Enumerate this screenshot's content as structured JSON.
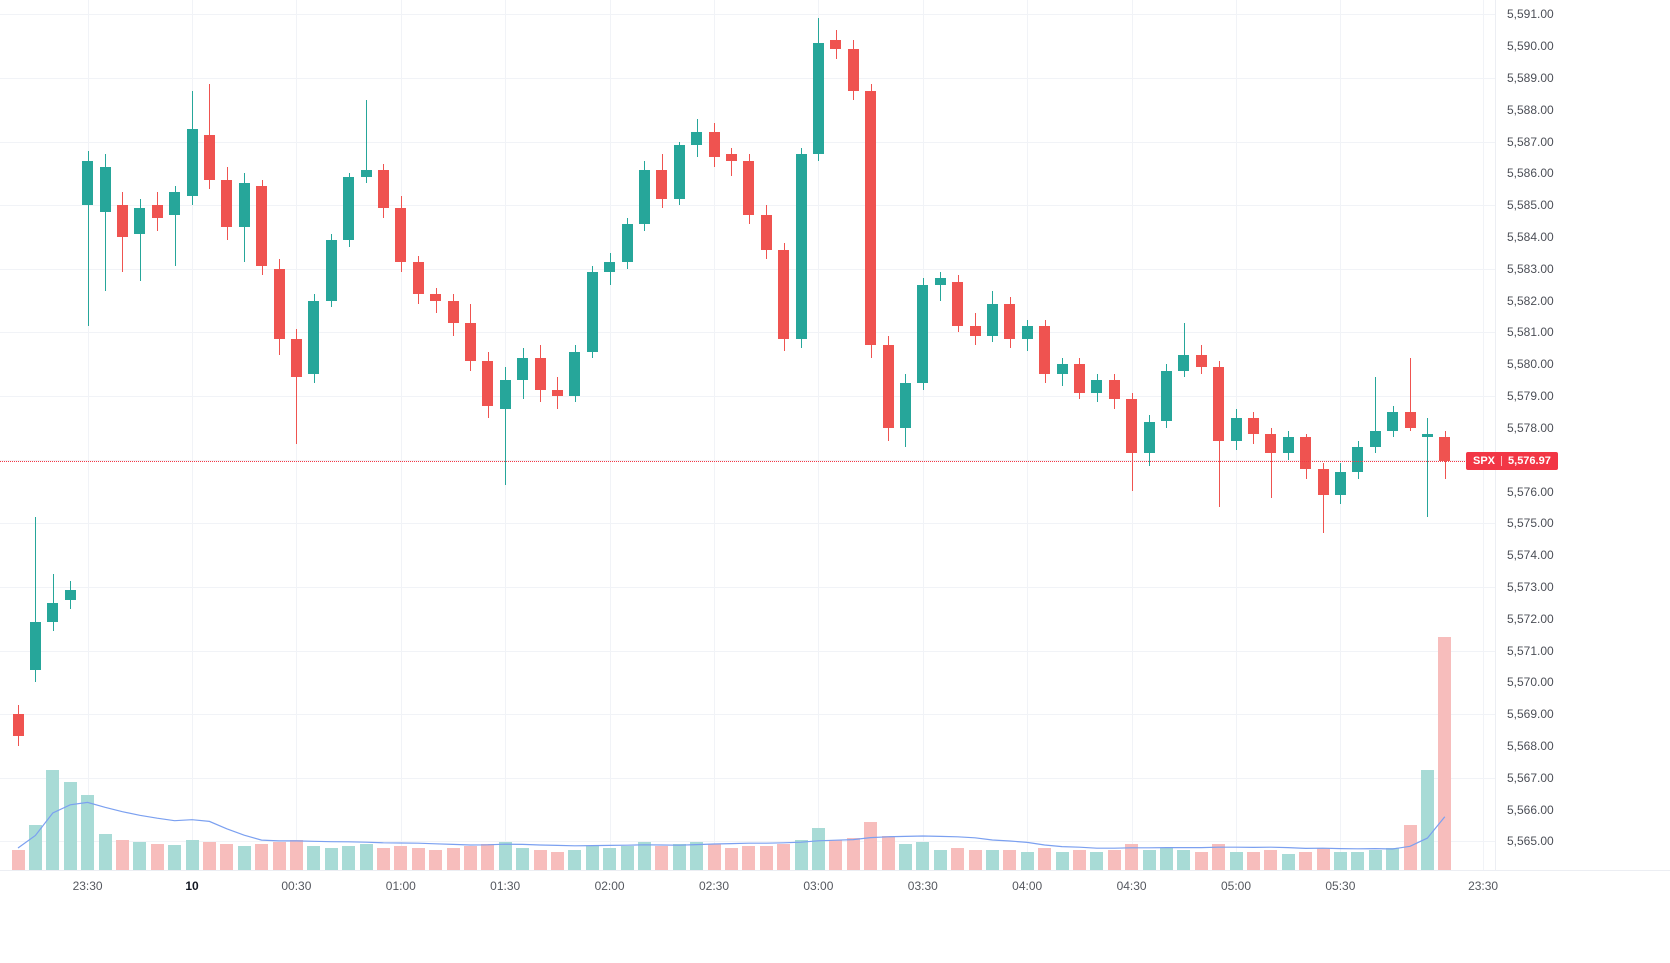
{
  "chart_data": {
    "type": "candlestick",
    "symbol": "SPX",
    "last_price": 5576.97,
    "last_price_label": "5,576.97",
    "grid": true,
    "legend_position": "none",
    "colors": {
      "up": "#26a69a",
      "down": "#ef5350",
      "vol_up": "#a8dbd6",
      "vol_down": "#f7bdbc",
      "ma_line": "#7ba0f0",
      "last_price_line": "#f23645",
      "label_bg": "#f23645",
      "grid": "#f1f3f7",
      "axis_text": "#4c4f57"
    },
    "price_axis": {
      "ylim": [
        5564.1,
        5591.45
      ],
      "labels": [
        "5,591.00",
        "5,590.00",
        "5,589.00",
        "5,588.00",
        "5,587.00",
        "5,586.00",
        "5,585.00",
        "5,584.00",
        "5,583.00",
        "5,582.00",
        "5,581.00",
        "5,580.00",
        "5,579.00",
        "5,578.00",
        "5,577.00",
        "5,576.00",
        "5,575.00",
        "5,574.00",
        "5,573.00",
        "5,572.00",
        "5,571.00",
        "5,570.00",
        "5,569.00",
        "5,568.00",
        "5,567.00",
        "5,566.00",
        "5,565.00"
      ]
    },
    "time_axis": {
      "labels": [
        {
          "text": "23:30",
          "i": 4
        },
        {
          "text": "10",
          "i": 10,
          "bold": true
        },
        {
          "text": "00:30",
          "i": 16
        },
        {
          "text": "01:00",
          "i": 22
        },
        {
          "text": "01:30",
          "i": 28
        },
        {
          "text": "02:00",
          "i": 34
        },
        {
          "text": "02:30",
          "i": 40
        },
        {
          "text": "03:00",
          "i": 46
        },
        {
          "text": "03:30",
          "i": 52
        },
        {
          "text": "04:00",
          "i": 58
        },
        {
          "text": "04:30",
          "i": 64
        },
        {
          "text": "05:00",
          "i": 70
        },
        {
          "text": "05:30",
          "i": 76
        },
        {
          "text": "23:30",
          "i": 84.2
        }
      ]
    },
    "columns": [
      "time",
      "open",
      "high",
      "low",
      "close",
      "volume_rel"
    ],
    "volume_scale": "relative",
    "candles": [
      [
        "23:10",
        5569.0,
        5569.3,
        5568.0,
        5568.3,
        20
      ],
      [
        "23:15",
        5570.4,
        5575.2,
        5570.0,
        5571.9,
        45
      ],
      [
        "23:20",
        5571.9,
        5573.4,
        5571.6,
        5572.5,
        100
      ],
      [
        "23:25",
        5572.6,
        5573.2,
        5572.3,
        5572.9,
        88
      ],
      [
        "23:30",
        5585.0,
        5586.7,
        5581.2,
        5586.4,
        75
      ],
      [
        "23:35",
        5584.8,
        5586.6,
        5582.3,
        5586.2,
        36
      ],
      [
        "23:40",
        5585.0,
        5585.4,
        5582.9,
        5584.0,
        30
      ],
      [
        "23:45",
        5584.1,
        5585.2,
        5582.6,
        5584.9,
        28
      ],
      [
        "23:50",
        5585.0,
        5585.4,
        5584.2,
        5584.6,
        26
      ],
      [
        "23:55",
        5584.7,
        5585.6,
        5583.1,
        5585.4,
        25
      ],
      [
        "00:00",
        5585.3,
        5588.6,
        5585.0,
        5587.4,
        30
      ],
      [
        "00:05",
        5587.2,
        5588.8,
        5585.5,
        5585.8,
        28
      ],
      [
        "00:10",
        5585.8,
        5586.2,
        5583.9,
        5584.3,
        26
      ],
      [
        "00:15",
        5584.3,
        5586.0,
        5583.2,
        5585.7,
        24
      ],
      [
        "00:20",
        5585.6,
        5585.8,
        5582.8,
        5583.1,
        26
      ],
      [
        "00:25",
        5583.0,
        5583.3,
        5580.3,
        5580.8,
        28
      ],
      [
        "00:30",
        5580.8,
        5581.1,
        5577.5,
        5579.6,
        30
      ],
      [
        "00:35",
        5579.7,
        5582.2,
        5579.4,
        5582.0,
        24
      ],
      [
        "00:40",
        5582.0,
        5584.1,
        5581.8,
        5583.9,
        22
      ],
      [
        "00:45",
        5583.9,
        5586.0,
        5583.7,
        5585.9,
        24
      ],
      [
        "00:50",
        5585.9,
        5588.3,
        5585.7,
        5586.1,
        26
      ],
      [
        "00:55",
        5586.1,
        5586.3,
        5584.6,
        5584.9,
        22
      ],
      [
        "01:00",
        5584.9,
        5585.3,
        5582.9,
        5583.2,
        24
      ],
      [
        "01:05",
        5583.2,
        5583.4,
        5581.9,
        5582.2,
        22
      ],
      [
        "01:10",
        5582.2,
        5582.4,
        5581.6,
        5582.0,
        20
      ],
      [
        "01:15",
        5582.0,
        5582.2,
        5580.9,
        5581.3,
        22
      ],
      [
        "01:20",
        5581.3,
        5581.9,
        5579.8,
        5580.1,
        24
      ],
      [
        "01:25",
        5580.1,
        5580.4,
        5578.3,
        5578.7,
        26
      ],
      [
        "01:30",
        5578.6,
        5579.9,
        5576.2,
        5579.5,
        28
      ],
      [
        "01:35",
        5579.5,
        5580.5,
        5578.9,
        5580.2,
        22
      ],
      [
        "01:40",
        5580.2,
        5580.6,
        5578.8,
        5579.2,
        20
      ],
      [
        "01:45",
        5579.2,
        5579.6,
        5578.6,
        5579.0,
        18
      ],
      [
        "01:50",
        5579.0,
        5580.6,
        5578.8,
        5580.4,
        20
      ],
      [
        "01:55",
        5580.4,
        5583.1,
        5580.2,
        5582.9,
        24
      ],
      [
        "02:00",
        5582.9,
        5583.5,
        5582.5,
        5583.2,
        22
      ],
      [
        "02:05",
        5583.2,
        5584.6,
        5583.0,
        5584.4,
        24
      ],
      [
        "02:10",
        5584.4,
        5586.4,
        5584.2,
        5586.1,
        28
      ],
      [
        "02:15",
        5586.1,
        5586.6,
        5584.9,
        5585.2,
        24
      ],
      [
        "02:20",
        5585.2,
        5587.0,
        5585.0,
        5586.9,
        26
      ],
      [
        "02:25",
        5586.9,
        5587.7,
        5586.5,
        5587.3,
        28
      ],
      [
        "02:30",
        5587.3,
        5587.6,
        5586.2,
        5586.5,
        26
      ],
      [
        "02:35",
        5586.6,
        5586.8,
        5585.9,
        5586.4,
        22
      ],
      [
        "02:40",
        5586.4,
        5586.6,
        5584.4,
        5584.7,
        24
      ],
      [
        "02:45",
        5584.7,
        5585.0,
        5583.3,
        5583.6,
        24
      ],
      [
        "02:50",
        5583.6,
        5583.8,
        5580.4,
        5580.8,
        26
      ],
      [
        "02:55",
        5580.8,
        5586.8,
        5580.5,
        5586.6,
        30
      ],
      [
        "03:00",
        5586.6,
        5590.9,
        5586.4,
        5590.1,
        42
      ],
      [
        "03:05",
        5590.2,
        5590.5,
        5589.6,
        5589.9,
        30
      ],
      [
        "03:10",
        5589.9,
        5590.2,
        5588.3,
        5588.6,
        32
      ],
      [
        "03:15",
        5588.6,
        5588.8,
        5580.2,
        5580.6,
        48
      ],
      [
        "03:20",
        5580.6,
        5580.9,
        5577.6,
        5578.0,
        34
      ],
      [
        "03:25",
        5578.0,
        5579.7,
        5577.4,
        5579.4,
        26
      ],
      [
        "03:30",
        5579.4,
        5582.7,
        5579.2,
        5582.5,
        28
      ],
      [
        "03:35",
        5582.5,
        5582.9,
        5582.0,
        5582.7,
        20
      ],
      [
        "03:40",
        5582.6,
        5582.8,
        5581.0,
        5581.2,
        22
      ],
      [
        "03:45",
        5581.2,
        5581.6,
        5580.6,
        5580.9,
        20
      ],
      [
        "03:50",
        5580.9,
        5582.3,
        5580.7,
        5581.9,
        20
      ],
      [
        "03:55",
        5581.9,
        5582.1,
        5580.5,
        5580.8,
        20
      ],
      [
        "04:00",
        5580.8,
        5581.4,
        5580.4,
        5581.2,
        18
      ],
      [
        "04:05",
        5581.2,
        5581.4,
        5579.4,
        5579.7,
        22
      ],
      [
        "04:10",
        5579.7,
        5580.2,
        5579.3,
        5580.0,
        18
      ],
      [
        "04:15",
        5580.0,
        5580.2,
        5578.9,
        5579.1,
        20
      ],
      [
        "04:20",
        5579.1,
        5579.7,
        5578.8,
        5579.5,
        18
      ],
      [
        "04:25",
        5579.5,
        5579.7,
        5578.6,
        5578.9,
        20
      ],
      [
        "04:30",
        5578.9,
        5579.1,
        5576.0,
        5577.2,
        26
      ],
      [
        "04:35",
        5577.2,
        5578.4,
        5576.8,
        5578.2,
        20
      ],
      [
        "04:40",
        5578.2,
        5580.0,
        5578.0,
        5579.8,
        22
      ],
      [
        "04:45",
        5579.8,
        5581.3,
        5579.6,
        5580.3,
        20
      ],
      [
        "04:50",
        5580.3,
        5580.6,
        5579.7,
        5579.9,
        18
      ],
      [
        "04:55",
        5579.9,
        5580.1,
        5575.5,
        5577.6,
        26
      ],
      [
        "05:00",
        5577.6,
        5578.6,
        5577.3,
        5578.3,
        18
      ],
      [
        "05:05",
        5578.3,
        5578.5,
        5577.5,
        5577.8,
        18
      ],
      [
        "05:10",
        5577.8,
        5578.0,
        5575.8,
        5577.2,
        20
      ],
      [
        "05:15",
        5577.2,
        5577.9,
        5577.0,
        5577.7,
        16
      ],
      [
        "05:20",
        5577.7,
        5577.8,
        5576.4,
        5576.7,
        18
      ],
      [
        "05:25",
        5576.7,
        5576.9,
        5574.7,
        5575.9,
        22
      ],
      [
        "05:30",
        5575.9,
        5576.9,
        5575.6,
        5576.6,
        18
      ],
      [
        "05:35",
        5576.6,
        5577.6,
        5576.4,
        5577.4,
        18
      ],
      [
        "05:40",
        5577.4,
        5579.6,
        5577.2,
        5577.9,
        20
      ],
      [
        "05:45",
        5577.9,
        5578.7,
        5577.7,
        5578.5,
        22
      ],
      [
        "05:50",
        5578.5,
        5580.2,
        5577.9,
        5578.0,
        45
      ],
      [
        "05:55",
        5577.7,
        5578.3,
        5575.2,
        5577.8,
        100
      ],
      [
        "06:00",
        5577.7,
        5577.9,
        5576.4,
        5576.97,
        233
      ]
    ]
  }
}
